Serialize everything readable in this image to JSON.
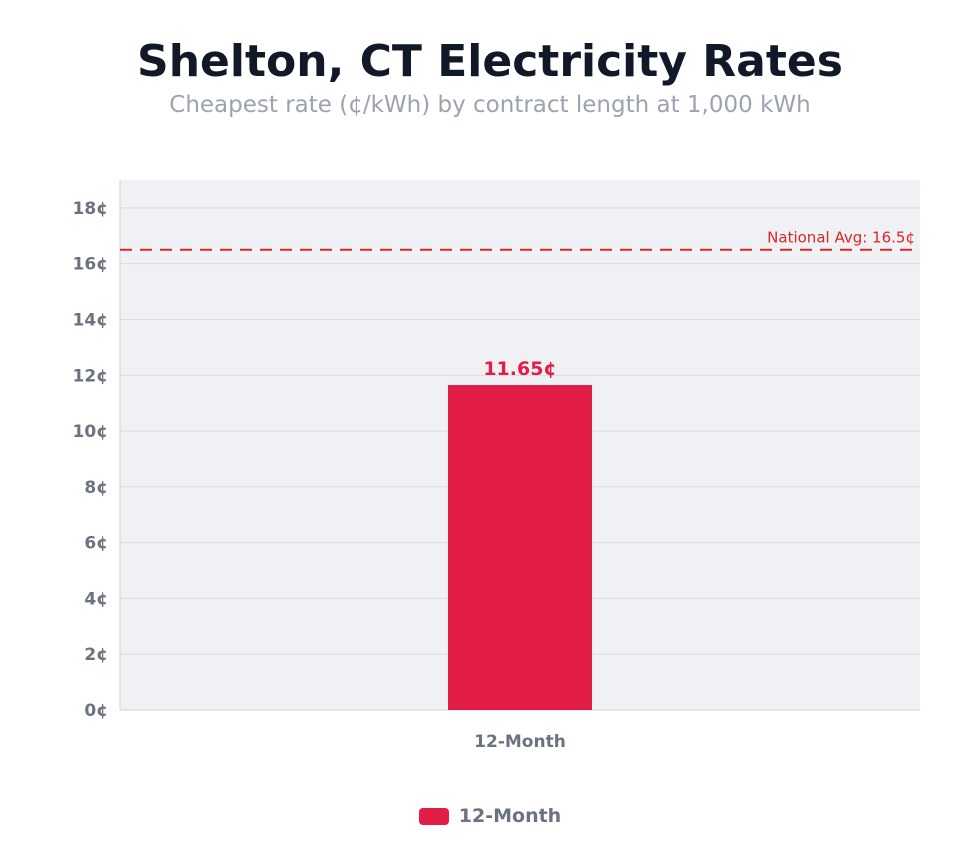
{
  "chart_data": {
    "type": "bar",
    "title": "Shelton, CT Electricity Rates",
    "subtitle": "Cheapest rate (¢/kWh) by contract length at 1,000 kWh",
    "categories": [
      "12-Month"
    ],
    "series": [
      {
        "name": "12-Month",
        "values": [
          11.65
        ],
        "color": "#e11d48"
      }
    ],
    "data_labels": [
      "11.65¢"
    ],
    "xlabel": "",
    "ylabel": "",
    "ylim": [
      0,
      19
    ],
    "yticks": [
      0,
      2,
      4,
      6,
      8,
      10,
      12,
      14,
      16,
      18
    ],
    "ytick_labels": [
      "0¢",
      "2¢",
      "4¢",
      "6¢",
      "8¢",
      "10¢",
      "12¢",
      "14¢",
      "16¢",
      "18¢"
    ],
    "grid": true,
    "reference_line": {
      "value": 16.5,
      "label": "National Avg: 16.5¢",
      "color": "#dc2626",
      "style": "dashed"
    },
    "legend": {
      "position": "bottom",
      "entries": [
        "12-Month"
      ]
    },
    "colors": {
      "plot_background": "#f0f1f5",
      "grid": "#d9dbe0",
      "tick_text": "#6b7280"
    }
  }
}
